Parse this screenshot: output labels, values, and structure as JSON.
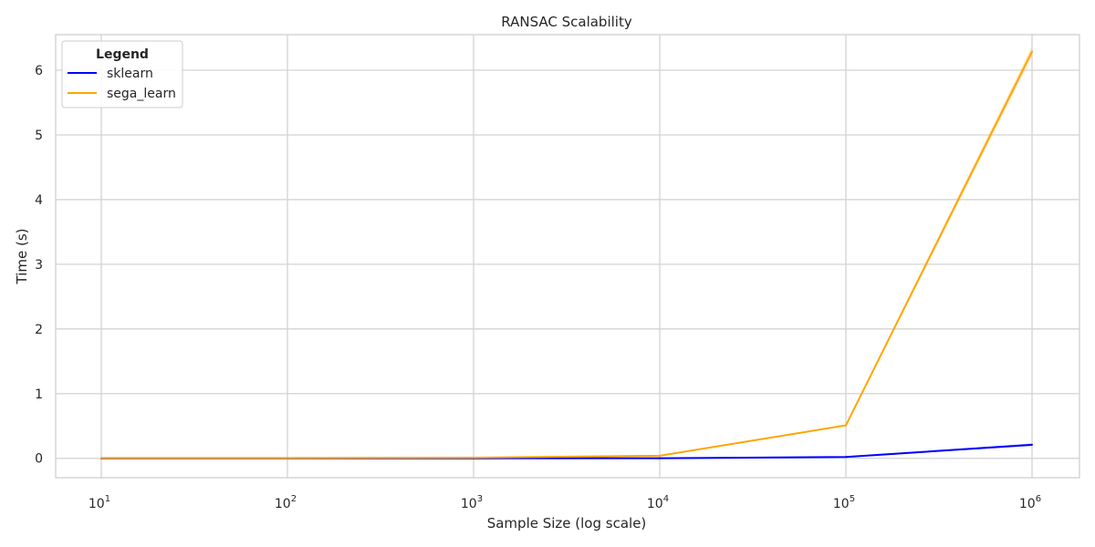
{
  "chart_data": {
    "type": "line",
    "title": "RANSAC Scalability",
    "xlabel": "Sample Size (log scale)",
    "ylabel": "Time (s)",
    "xscale": "log",
    "x": [
      10,
      100,
      1000,
      10000,
      100000,
      1000000
    ],
    "xlim": [
      10,
      1000000
    ],
    "ylim": [
      -0.3,
      6.55
    ],
    "x_ticks": [
      {
        "base": "10",
        "exp": "1"
      },
      {
        "base": "10",
        "exp": "2"
      },
      {
        "base": "10",
        "exp": "3"
      },
      {
        "base": "10",
        "exp": "4"
      },
      {
        "base": "10",
        "exp": "5"
      },
      {
        "base": "10",
        "exp": "6"
      }
    ],
    "y_ticks": [
      "0",
      "1",
      "2",
      "3",
      "4",
      "5",
      "6"
    ],
    "grid": true,
    "legend": {
      "title": "Legend",
      "placement": "top-left"
    },
    "series": [
      {
        "name": "sklearn",
        "color": "#0000ff",
        "values": [
          0.0,
          0.0,
          0.0,
          0.002,
          0.02,
          0.21
        ],
        "band": [
          0.0,
          0.0,
          0.0,
          0.002,
          0.01,
          0.02
        ]
      },
      {
        "name": "sega_learn",
        "color": "#ffa500",
        "values": [
          0.005,
          0.005,
          0.01,
          0.04,
          0.51,
          6.29
        ],
        "band": [
          0.0,
          0.0,
          0.0,
          0.005,
          0.01,
          0.08
        ]
      }
    ]
  }
}
